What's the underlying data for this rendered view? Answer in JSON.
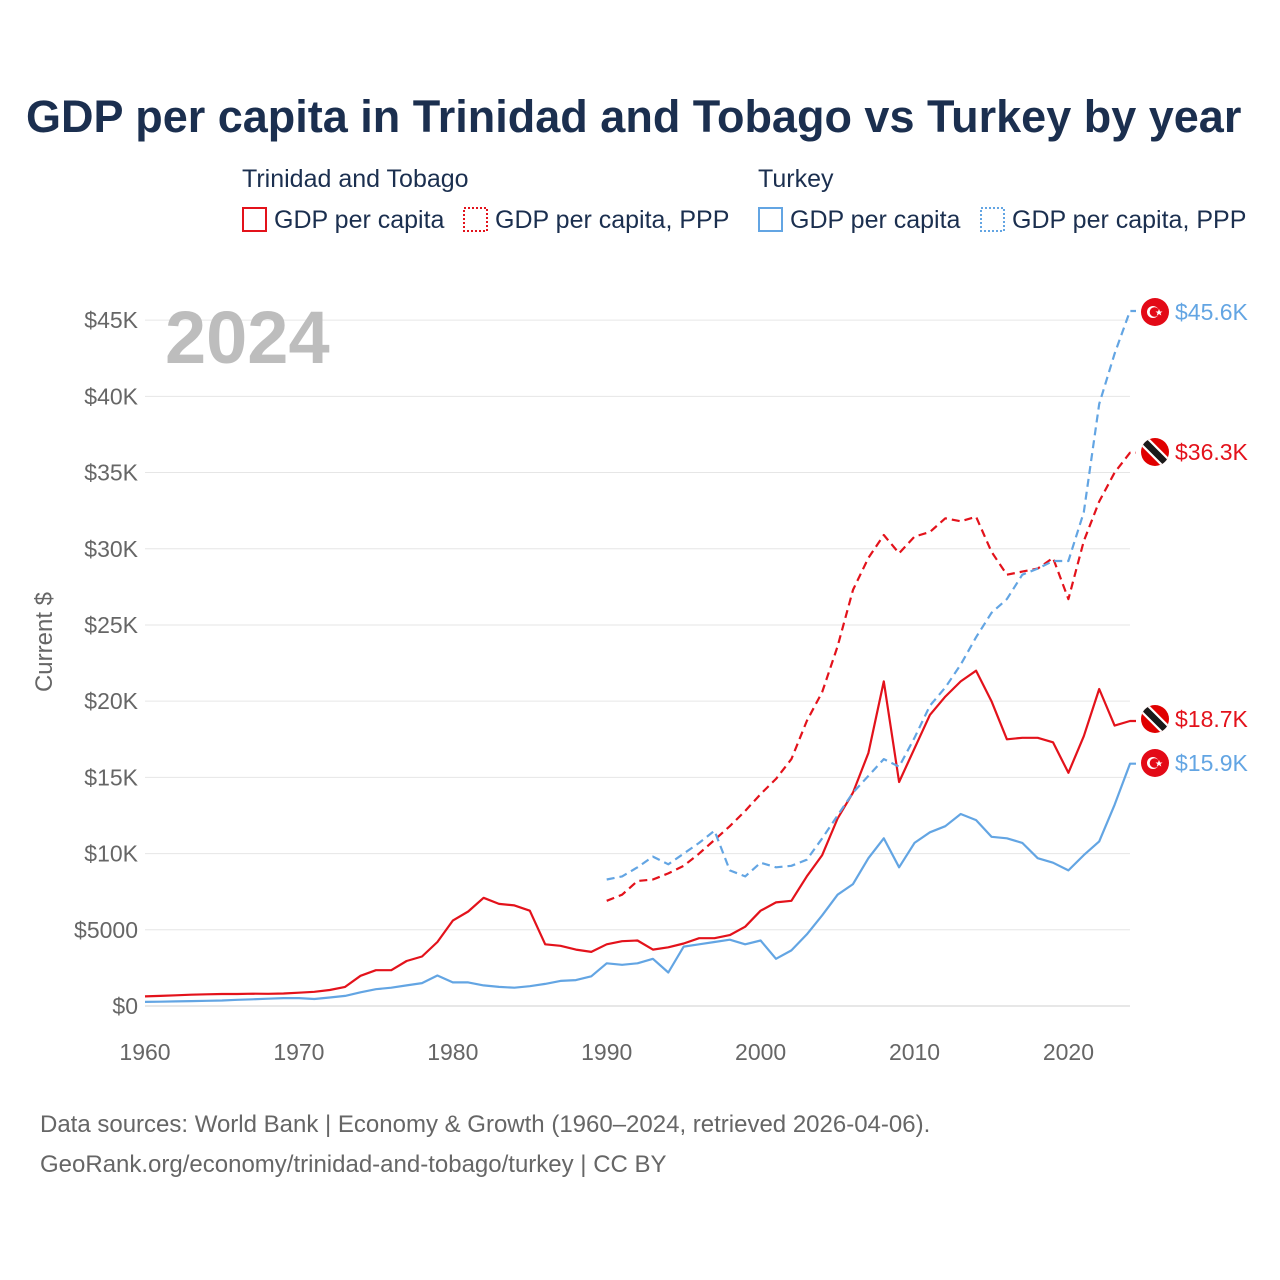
{
  "chart_data": {
    "type": "line",
    "title": "GDP per capita in Trinidad and Tobago vs Turkey by year",
    "year_label": "2024",
    "ylabel": "Current $",
    "xlabel": "",
    "xlim": [
      1960,
      2024
    ],
    "ylim": [
      0,
      46000
    ],
    "x_ticks": [
      1960,
      1970,
      1980,
      1990,
      2000,
      2010,
      2020
    ],
    "x_tick_labels": [
      "1960",
      "1970",
      "1980",
      "1990",
      "2000",
      "2010",
      "2020"
    ],
    "y_ticks": [
      0,
      5000,
      10000,
      15000,
      20000,
      25000,
      30000,
      35000,
      40000,
      45000
    ],
    "y_tick_labels": [
      "$0",
      "$5000",
      "$10K",
      "$15K",
      "$20K",
      "$25K",
      "$30K",
      "$35K",
      "$40K",
      "$45K"
    ],
    "grid": true,
    "legend": {
      "groups": [
        {
          "country": "Trinidad and Tobago",
          "items": [
            "GDP per capita",
            "GDP per capita, PPP"
          ],
          "color": "#e3121b"
        },
        {
          "country": "Turkey",
          "items": [
            "GDP per capita",
            "GDP per capita, PPP"
          ],
          "color": "#63a5e3"
        }
      ]
    },
    "series": [
      {
        "name": "Trinidad and Tobago GDP per capita",
        "country": "Trinidad and Tobago",
        "style": "solid",
        "color": "#e3121b",
        "end_label": "$18.7K",
        "flag": "trinidad-and-tobago-flag",
        "x": [
          1960,
          1961,
          1962,
          1963,
          1964,
          1965,
          1966,
          1967,
          1968,
          1969,
          1970,
          1971,
          1972,
          1973,
          1974,
          1975,
          1976,
          1977,
          1978,
          1979,
          1980,
          1981,
          1982,
          1983,
          1984,
          1985,
          1986,
          1987,
          1988,
          1989,
          1990,
          1991,
          1992,
          1993,
          1994,
          1995,
          1996,
          1997,
          1998,
          1999,
          2000,
          2001,
          2002,
          2003,
          2004,
          2005,
          2006,
          2007,
          2008,
          2009,
          2010,
          2011,
          2012,
          2013,
          2014,
          2015,
          2016,
          2017,
          2018,
          2019,
          2020,
          2021,
          2022,
          2023,
          2024
        ],
        "values": [
          630,
          660,
          700,
          740,
          770,
          790,
          790,
          810,
          800,
          820,
          870,
          930,
          1050,
          1250,
          1980,
          2350,
          2350,
          2950,
          3250,
          4200,
          5600,
          6200,
          7100,
          6700,
          6600,
          6250,
          4050,
          3950,
          3700,
          3550,
          4050,
          4250,
          4300,
          3700,
          3850,
          4100,
          4450,
          4450,
          4650,
          5200,
          6250,
          6800,
          6900,
          8500,
          9900,
          12300,
          14000,
          16600,
          21300,
          14700,
          16900,
          19100,
          20300,
          21300,
          22000,
          20000,
          17500,
          17600,
          17600,
          17300,
          15300,
          17700,
          20800,
          18400,
          18700
        ]
      },
      {
        "name": "Trinidad and Tobago GDP per capita, PPP",
        "country": "Trinidad and Tobago",
        "style": "dashed",
        "color": "#e3121b",
        "end_label": "$36.3K",
        "flag": "trinidad-and-tobago-flag",
        "x": [
          1990,
          1991,
          1992,
          1993,
          1994,
          1995,
          1996,
          1997,
          1998,
          1999,
          2000,
          2001,
          2002,
          2003,
          2004,
          2005,
          2006,
          2007,
          2008,
          2009,
          2010,
          2011,
          2012,
          2013,
          2014,
          2015,
          2016,
          2017,
          2018,
          2019,
          2020,
          2021,
          2022,
          2023,
          2024
        ],
        "values": [
          6900,
          7300,
          8200,
          8300,
          8700,
          9200,
          10000,
          10900,
          11800,
          12800,
          13900,
          14900,
          16200,
          18700,
          20600,
          23600,
          27300,
          29400,
          30900,
          29700,
          30800,
          31100,
          32000,
          31800,
          32100,
          29800,
          28300,
          28500,
          28700,
          29400,
          26700,
          30500,
          33100,
          35000,
          36300
        ]
      },
      {
        "name": "Turkey GDP per capita",
        "country": "Turkey",
        "style": "solid",
        "color": "#63a5e3",
        "end_label": "$15.9K",
        "flag": "turkey-flag",
        "x": [
          1960,
          1961,
          1962,
          1963,
          1964,
          1965,
          1966,
          1967,
          1968,
          1969,
          1970,
          1971,
          1972,
          1973,
          1974,
          1975,
          1976,
          1977,
          1978,
          1979,
          1980,
          1981,
          1982,
          1983,
          1984,
          1985,
          1986,
          1987,
          1988,
          1989,
          1990,
          1991,
          1992,
          1993,
          1994,
          1995,
          1996,
          1997,
          1998,
          1999,
          2000,
          2001,
          2002,
          2003,
          2004,
          2005,
          2006,
          2007,
          2008,
          2009,
          2010,
          2011,
          2012,
          2013,
          2014,
          2015,
          2016,
          2017,
          2018,
          2019,
          2020,
          2021,
          2022,
          2023,
          2024
        ],
        "values": [
          270,
          280,
          300,
          320,
          340,
          360,
          410,
          440,
          480,
          520,
          520,
          460,
          560,
          660,
          900,
          1100,
          1200,
          1350,
          1500,
          2000,
          1550,
          1550,
          1350,
          1250,
          1200,
          1300,
          1450,
          1650,
          1700,
          1950,
          2800,
          2700,
          2800,
          3100,
          2200,
          3900,
          4050,
          4200,
          4350,
          4050,
          4300,
          3100,
          3650,
          4700,
          5950,
          7300,
          8000,
          9700,
          11000,
          9100,
          10700,
          11400,
          11800,
          12600,
          12200,
          11100,
          11000,
          10700,
          9700,
          9400,
          8900,
          9900,
          10800,
          13200,
          15900
        ]
      },
      {
        "name": "Turkey GDP per capita, PPP",
        "country": "Turkey",
        "style": "dashed",
        "color": "#63a5e3",
        "end_label": "$45.6K",
        "flag": "turkey-flag",
        "x": [
          1990,
          1991,
          1992,
          1993,
          1994,
          1995,
          1996,
          1997,
          1998,
          1999,
          2000,
          2001,
          2002,
          2003,
          2004,
          2005,
          2006,
          2007,
          2008,
          2009,
          2010,
          2011,
          2012,
          2013,
          2014,
          2015,
          2016,
          2017,
          2018,
          2019,
          2020,
          2021,
          2022,
          2023,
          2024
        ],
        "values": [
          8300,
          8500,
          9100,
          9800,
          9300,
          10000,
          10700,
          11500,
          8900,
          8500,
          9400,
          9100,
          9200,
          9600,
          11000,
          12500,
          14000,
          15100,
          16200,
          15700,
          17600,
          19700,
          20900,
          22400,
          24200,
          25800,
          26700,
          28300,
          28700,
          29200,
          29200,
          32400,
          39500,
          42800,
          45600
        ]
      }
    ]
  },
  "colors": {
    "title": "#1b2f4f",
    "trinidad": "#e3121b",
    "turkey": "#63a5e3",
    "year": "#bdbdbd",
    "axis_text": "#666666",
    "grid": "#e6e6e6"
  },
  "source": {
    "line1": "Data sources: World Bank | Economy & Growth (1960–2024, retrieved 2026-04-06).",
    "line2": "GeoRank.org/economy/trinidad-and-tobago/turkey | CC BY"
  }
}
